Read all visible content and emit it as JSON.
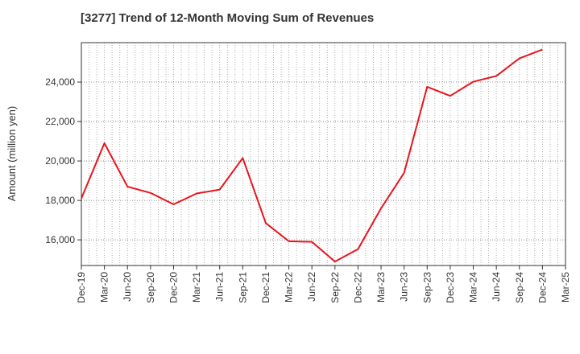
{
  "chart_data": {
    "type": "line",
    "title": "[3277]  Trend of 12-Month Moving Sum of Revenues",
    "xlabel": "",
    "ylabel": "Amount (million yen)",
    "ylim": [
      14700,
      26000
    ],
    "y_ticks": [
      16000,
      18000,
      20000,
      22000,
      24000
    ],
    "y_tick_labels": [
      "16,000",
      "18,000",
      "20,000",
      "22,000",
      "24,000"
    ],
    "x_tick_labels": [
      "Dec-19",
      "Mar-20",
      "Jun-20",
      "Sep-20",
      "Dec-20",
      "Mar-21",
      "Jun-21",
      "Sep-21",
      "Dec-21",
      "Mar-22",
      "Jun-22",
      "Sep-22",
      "Dec-22",
      "Mar-23",
      "Jun-23",
      "Sep-23",
      "Dec-23",
      "Mar-24",
      "Jun-24",
      "Sep-24",
      "Dec-24",
      "Mar-25"
    ],
    "grid": true,
    "series": [
      {
        "color": "#e8141c",
        "x": [
          "Dec-19",
          "Mar-20",
          "Jun-20",
          "Sep-20",
          "Dec-20",
          "Mar-21",
          "Jun-21",
          "Sep-21",
          "Dec-21",
          "Mar-22",
          "Jun-22",
          "Sep-22",
          "Dec-22",
          "Mar-23",
          "Jun-23",
          "Sep-23",
          "Dec-23",
          "Mar-24",
          "Jun-24",
          "Sep-24",
          "Dec-24"
        ],
        "values": [
          18100,
          20900,
          18700,
          18380,
          17800,
          18350,
          18550,
          20150,
          16850,
          15930,
          15900,
          14900,
          15530,
          17600,
          19400,
          23760,
          23300,
          24020,
          24310,
          25200,
          25650
        ]
      }
    ]
  }
}
